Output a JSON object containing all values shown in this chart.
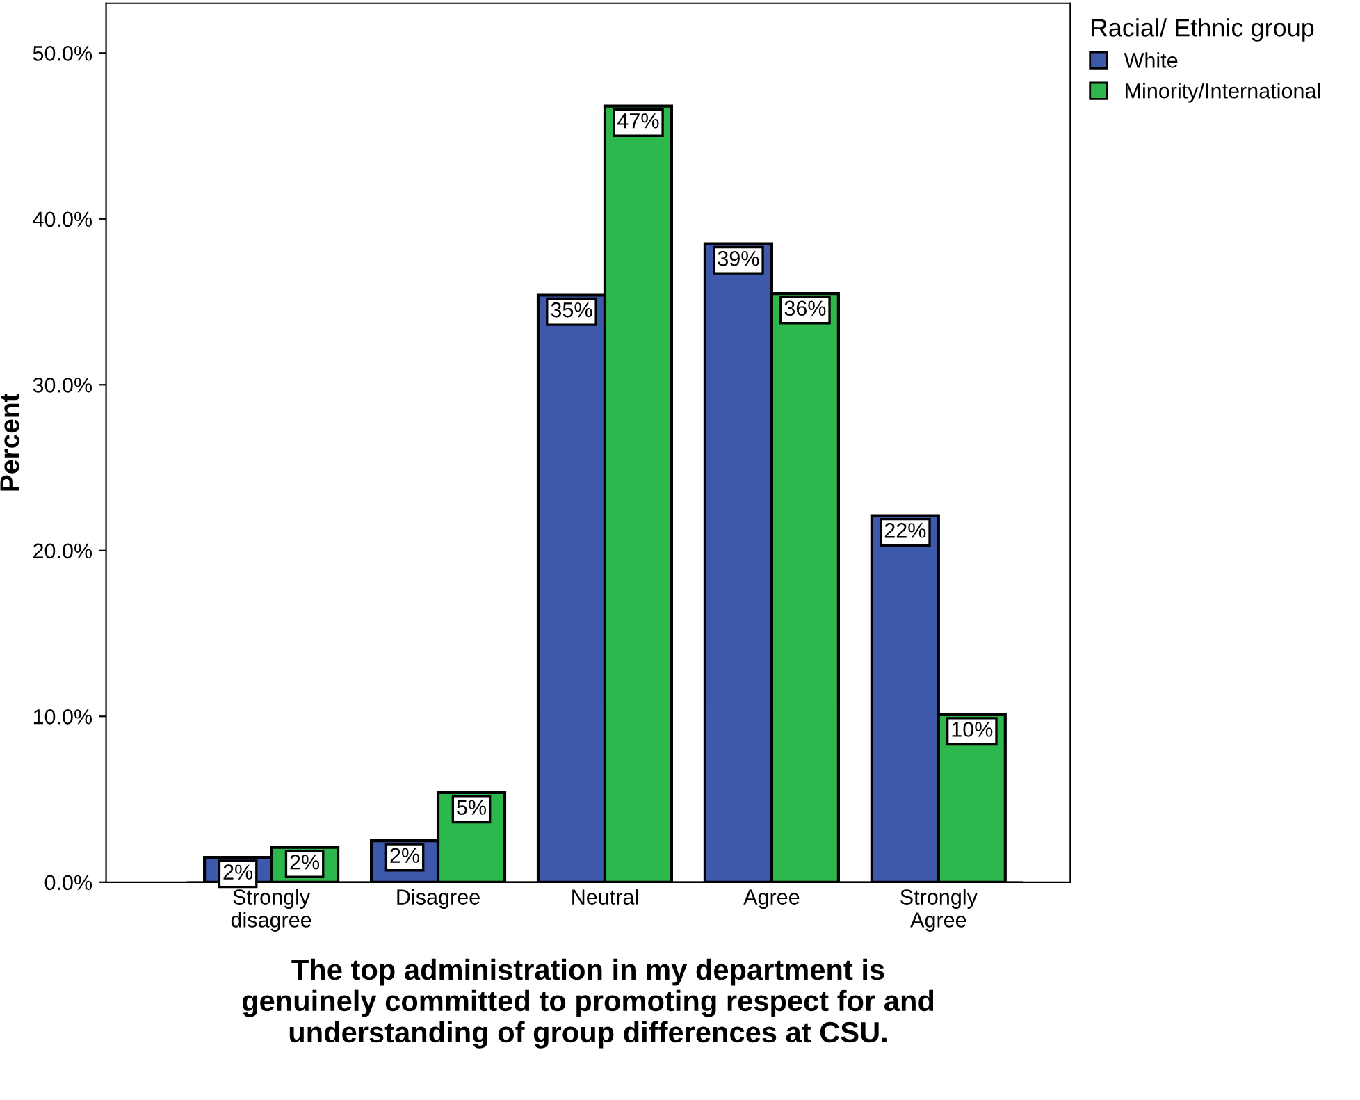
{
  "chart_data": {
    "type": "bar",
    "xlabel": "The top administration in my department is\ngenuinely committed to promoting respect for and\nunderstanding of group differences at CSU.",
    "ylabel": "Percent",
    "legend_title": "Racial/ Ethnic group",
    "legend": "top right",
    "grid": false,
    "categories": [
      "Strongly\ndisagree",
      "Disagree",
      "Neutral",
      "Agree",
      "Strongly\nAgree"
    ],
    "series": [
      {
        "name": "White",
        "color": "#3e58ac",
        "values": [
          1.5,
          2.5,
          35.4,
          38.5,
          22.1
        ],
        "value_labels": [
          "2%",
          "2%",
          "35%",
          "39%",
          "22%"
        ]
      },
      {
        "name": "Minority/International",
        "color": "#2db84d",
        "values": [
          2.1,
          5.4,
          46.8,
          35.5,
          10.1
        ],
        "value_labels": [
          "2%",
          "5%",
          "47%",
          "36%",
          "10%"
        ]
      }
    ],
    "ylim": [
      0,
      53
    ],
    "yticks": [
      {
        "value": 0,
        "label": "0.0%"
      },
      {
        "value": 10,
        "label": "10.0%"
      },
      {
        "value": 20,
        "label": "20.0%"
      },
      {
        "value": 30,
        "label": "30.0%"
      },
      {
        "value": 40,
        "label": "40.0%"
      },
      {
        "value": 50,
        "label": "50.0%"
      }
    ]
  }
}
